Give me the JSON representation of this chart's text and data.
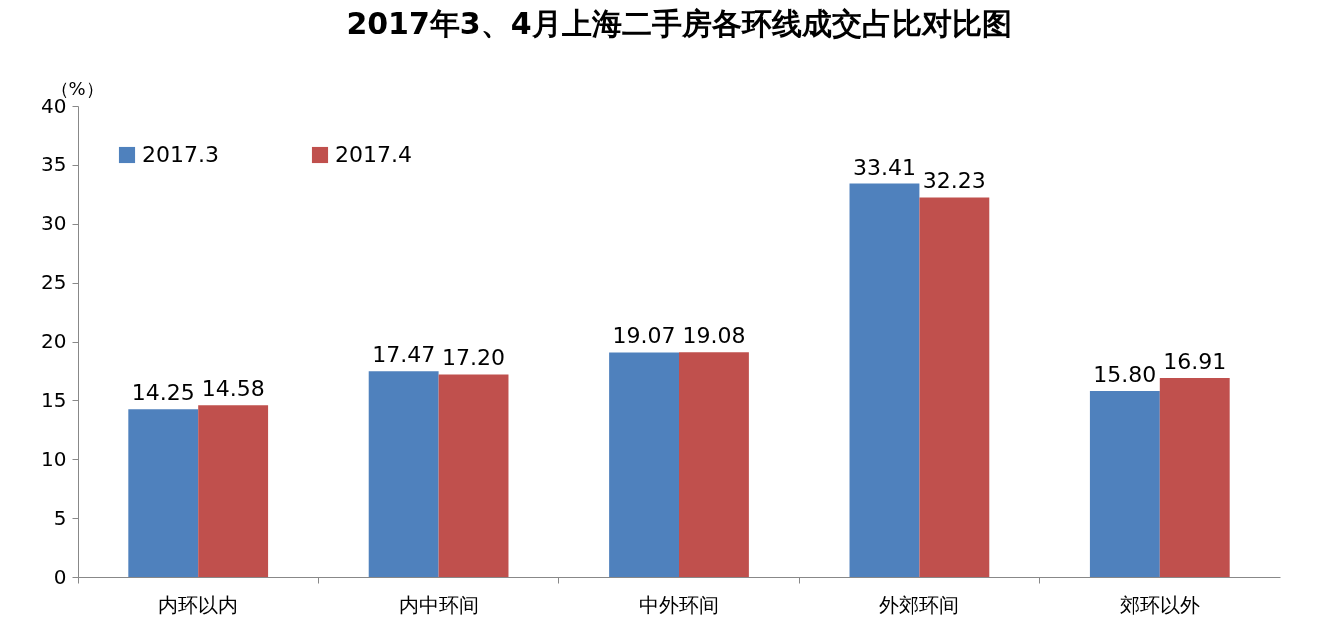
{
  "chart_data": {
    "type": "bar",
    "title": "2017年3、4月上海二手房各环线成交占比对比图",
    "ylabel": "（%）",
    "categories": [
      "内环以内",
      "内中环间",
      "中外环间",
      "外郊环间",
      "郊环以外"
    ],
    "series": [
      {
        "name": "2017.3",
        "color": "#4f81bd",
        "values": [
          14.25,
          17.47,
          19.07,
          33.41,
          15.8
        ],
        "value_labels": [
          "14.25",
          "17.47",
          "19.07",
          "33.41",
          "15.80"
        ]
      },
      {
        "name": "2017.4",
        "color": "#c0504d",
        "values": [
          14.58,
          17.2,
          19.08,
          32.23,
          16.91
        ],
        "value_labels": [
          "14.58",
          "17.20",
          "19.08",
          "32.23",
          "16.91"
        ]
      }
    ],
    "ylim": [
      0,
      40
    ],
    "yticks": [
      0,
      5,
      10,
      15,
      20,
      25,
      30,
      35,
      40
    ],
    "grid": false,
    "legend": "top left"
  }
}
